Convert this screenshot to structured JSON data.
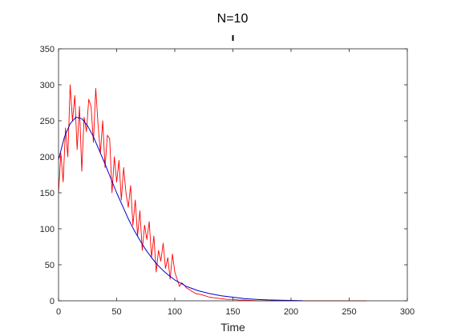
{
  "chart_data": {
    "type": "line",
    "title": "N=10",
    "xlabel": "Time",
    "ylabel": "",
    "xlim": [
      0,
      300
    ],
    "ylim": [
      0,
      350
    ],
    "xticks": [
      0,
      50,
      100,
      150,
      200,
      250,
      300
    ],
    "yticks": [
      0,
      50,
      100,
      150,
      200,
      250,
      300,
      350
    ],
    "grid": false,
    "legend": "none",
    "annotation": {
      "type": "vertical-tick",
      "x": 150,
      "y_range": [
        361,
        369
      ]
    },
    "series": [
      {
        "color": "#ff0000",
        "style": "stochastic",
        "x": [
          0,
          2,
          4,
          6,
          8,
          10,
          12,
          14,
          16,
          18,
          20,
          22,
          24,
          26,
          28,
          30,
          32,
          34,
          36,
          38,
          40,
          42,
          44,
          46,
          48,
          50,
          52,
          54,
          56,
          58,
          60,
          62,
          64,
          66,
          68,
          70,
          72,
          74,
          76,
          78,
          80,
          82,
          84,
          86,
          88,
          90,
          92,
          94,
          96,
          98,
          100,
          102,
          104,
          106,
          108,
          110,
          114,
          118,
          122,
          126,
          130,
          135,
          140,
          145,
          150,
          155,
          160,
          170,
          180,
          190,
          200,
          210,
          220,
          230,
          240,
          250,
          260,
          265
        ],
        "y": [
          150,
          205,
          165,
          240,
          200,
          300,
          250,
          285,
          210,
          270,
          180,
          255,
          235,
          280,
          270,
          220,
          295,
          245,
          205,
          250,
          185,
          230,
          225,
          150,
          200,
          165,
          195,
          140,
          185,
          150,
          130,
          160,
          105,
          140,
          90,
          125,
          70,
          105,
          85,
          110,
          60,
          90,
          40,
          70,
          55,
          80,
          45,
          60,
          30,
          65,
          40,
          30,
          20,
          25,
          22,
          18,
          14,
          10,
          9,
          7,
          5,
          4,
          3,
          2,
          2,
          1,
          1,
          0,
          0,
          0,
          0,
          0,
          0,
          0,
          0,
          0,
          0,
          0
        ]
      },
      {
        "color": "#0000cd",
        "style": "smooth",
        "x": [
          0,
          5,
          10,
          15,
          20,
          25,
          30,
          35,
          40,
          45,
          50,
          55,
          60,
          65,
          70,
          75,
          80,
          85,
          90,
          95,
          100,
          110,
          120,
          130,
          140,
          150,
          160,
          170,
          180,
          190,
          200,
          210
        ],
        "y": [
          196,
          227,
          246,
          255,
          253,
          243,
          228,
          209,
          190,
          170,
          150,
          132,
          114,
          98,
          84,
          71,
          60,
          50,
          42,
          35,
          29,
          20,
          14,
          10,
          7,
          5,
          3,
          2,
          1.2,
          0.8,
          0.5,
          0.2
        ]
      }
    ]
  }
}
